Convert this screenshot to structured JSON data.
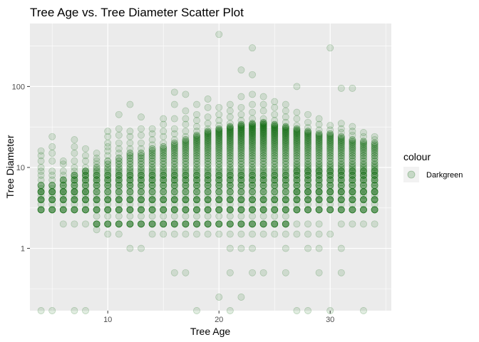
{
  "chart_data": {
    "type": "scatter",
    "title": "Tree Age vs. Tree Diameter Scatter Plot",
    "xlabel": "Tree Age",
    "ylabel": "Tree Diameter",
    "x_scale": "linear",
    "y_scale": "log10",
    "xlim": [
      3,
      35.5
    ],
    "ylim": [
      0.17,
      600
    ],
    "x_ticks": [
      10,
      20,
      30
    ],
    "x_tick_labels": [
      "10",
      "20",
      "30"
    ],
    "y_ticks": [
      1,
      10,
      100
    ],
    "y_tick_labels": [
      "1",
      "10",
      "100"
    ],
    "grid": true,
    "point_color": "#006400",
    "point_alpha": 0.12,
    "panel_background": "#ebebeb",
    "legend": {
      "title": "colour",
      "position": "right",
      "entries": [
        "Darkgreen"
      ]
    },
    "series": [
      {
        "name": "Darkgreen",
        "columns": [
          {
            "x": 4,
            "dense": [
              3,
              6
            ],
            "sparse": [
              0.17,
              7,
              8,
              9,
              10,
              12,
              14,
              16
            ]
          },
          {
            "x": 5,
            "dense": [
              3,
              6
            ],
            "sparse": [
              0.17,
              7,
              8,
              9,
              12,
              15,
              18,
              24
            ]
          },
          {
            "x": 6,
            "dense": [
              3,
              7
            ],
            "sparse": [
              2,
              8,
              9,
              11,
              12
            ]
          },
          {
            "x": 7,
            "dense": [
              3,
              8
            ],
            "sparse": [
              0.17,
              2,
              9,
              10,
              12,
              15,
              18,
              22
            ]
          },
          {
            "x": 8,
            "dense": [
              3,
              9
            ],
            "sparse": [
              0.17,
              2,
              10,
              12,
              14,
              17
            ]
          },
          {
            "x": 9,
            "dense": [
              2,
              10
            ],
            "sparse": [
              1.7,
              11,
              12,
              13,
              15
            ]
          },
          {
            "x": 10,
            "dense": [
              2,
              12
            ],
            "sparse": [
              1.5,
              14,
              16,
              18,
              20,
              24,
              28
            ]
          },
          {
            "x": 11,
            "dense": [
              2,
              13
            ],
            "sparse": [
              1.5,
              15,
              17,
              20,
              25,
              30,
              45
            ]
          },
          {
            "x": 12,
            "dense": [
              2,
              15
            ],
            "sparse": [
              1,
              17,
              20,
              24,
              28,
              60
            ]
          },
          {
            "x": 13,
            "dense": [
              2,
              15
            ],
            "sparse": [
              1,
              17,
              20,
              25,
              30,
              42
            ]
          },
          {
            "x": 14,
            "dense": [
              2,
              17
            ],
            "sparse": [
              1.5,
              19,
              22,
              26,
              30
            ]
          },
          {
            "x": 15,
            "dense": [
              2,
              18
            ],
            "sparse": [
              1.5,
              20,
              24,
              28,
              34,
              40
            ]
          },
          {
            "x": 16,
            "dense": [
              2,
              20
            ],
            "sparse": [
              0.5,
              1.5,
              22,
              26,
              30,
              40,
              60,
              85
            ]
          },
          {
            "x": 17,
            "dense": [
              2,
              22
            ],
            "sparse": [
              0.5,
              1.5,
              24,
              28,
              34,
              40,
              50,
              80
            ]
          },
          {
            "x": 18,
            "dense": [
              2,
              25
            ],
            "sparse": [
              0.17,
              1.5,
              28,
              32,
              38,
              45,
              60
            ]
          },
          {
            "x": 19,
            "dense": [
              2,
              28
            ],
            "sparse": [
              1.5,
              30,
              35,
              42,
              55,
              70
            ]
          },
          {
            "x": 20,
            "dense": [
              2,
              30
            ],
            "sparse": [
              0.25,
              1.5,
              33,
              38,
              45,
              55,
              440
            ]
          },
          {
            "x": 21,
            "dense": [
              2,
              32
            ],
            "sparse": [
              0.17,
              0.5,
              1,
              1.5,
              35,
              42,
              50,
              60
            ]
          },
          {
            "x": 22,
            "dense": [
              2,
              34
            ],
            "sparse": [
              0.25,
              1,
              1.5,
              38,
              45,
              55,
              75,
              160
            ]
          },
          {
            "x": 23,
            "dense": [
              2,
              35
            ],
            "sparse": [
              0.5,
              1,
              1.5,
              40,
              48,
              60,
              80,
              140,
              300
            ]
          },
          {
            "x": 24,
            "dense": [
              2,
              36
            ],
            "sparse": [
              0.5,
              1.5,
              40,
              50,
              60,
              75
            ]
          },
          {
            "x": 25,
            "dense": [
              2,
              34
            ],
            "sparse": [
              1.5,
              38,
              45,
              55,
              65
            ]
          },
          {
            "x": 26,
            "dense": [
              2,
              32
            ],
            "sparse": [
              0.5,
              1,
              1.5,
              36,
              42,
              50,
              60
            ]
          },
          {
            "x": 27,
            "dense": [
              3,
              30
            ],
            "sparse": [
              0.17,
              1.5,
              2,
              33,
              40,
              48,
              100
            ]
          },
          {
            "x": 28,
            "dense": [
              3,
              28
            ],
            "sparse": [
              0.17,
              1,
              1.5,
              2,
              31,
              36,
              45
            ]
          },
          {
            "x": 29,
            "dense": [
              3,
              26
            ],
            "sparse": [
              0.5,
              1,
              1.5,
              2,
              29,
              34,
              40
            ]
          },
          {
            "x": 30,
            "dense": [
              3,
              26
            ],
            "sparse": [
              0.17,
              1.5,
              29,
              33,
              300
            ]
          },
          {
            "x": 31,
            "dense": [
              3,
              24
            ],
            "sparse": [
              0.5,
              1,
              2,
              27,
              30,
              35,
              95
            ]
          },
          {
            "x": 32,
            "dense": [
              3,
              22
            ],
            "sparse": [
              2,
              25,
              28,
              32,
              95
            ]
          },
          {
            "x": 33,
            "dense": [
              3,
              21
            ],
            "sparse": [
              0.17,
              2,
              24,
              27
            ]
          },
          {
            "x": 34,
            "dense": [
              3,
              20
            ],
            "sparse": [
              2,
              22,
              24
            ]
          }
        ]
      }
    ]
  }
}
